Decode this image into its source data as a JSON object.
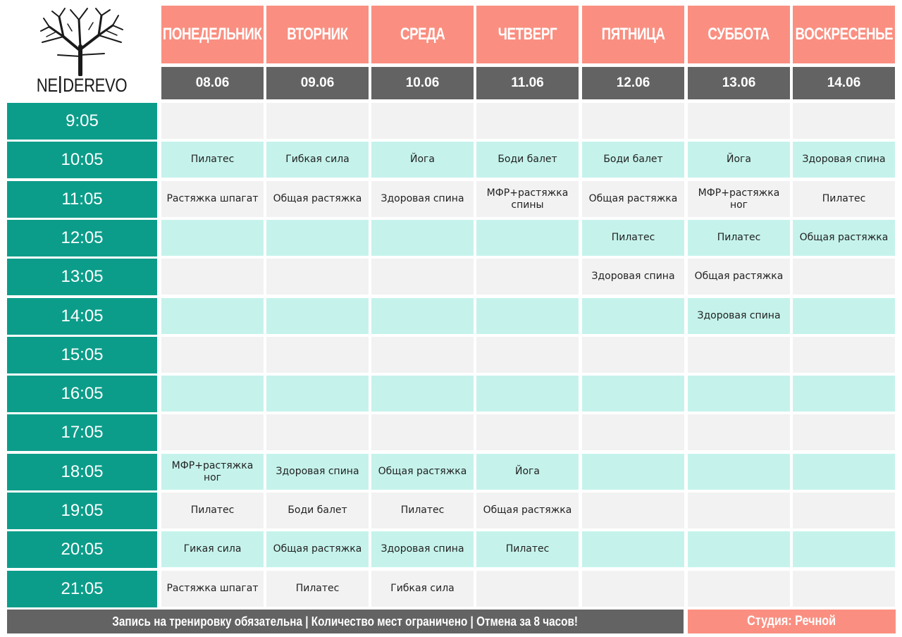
{
  "brand": {
    "name_left": "NE",
    "name_right": "DEREVO"
  },
  "days": [
    {
      "name": "ПОНЕДЕЛЬНИК",
      "date": "08.06"
    },
    {
      "name": "ВТОРНИК",
      "date": "09.06"
    },
    {
      "name": "СРЕДА",
      "date": "10.06"
    },
    {
      "name": "ЧЕТВЕРГ",
      "date": "11.06"
    },
    {
      "name": "ПЯТНИЦА",
      "date": "12.06"
    },
    {
      "name": "СУББОТА",
      "date": "13.06"
    },
    {
      "name": "ВОСКРЕСЕНЬЕ",
      "date": "14.06"
    }
  ],
  "times": [
    "9:05",
    "10:05",
    "11:05",
    "12:05",
    "13:05",
    "14:05",
    "15:05",
    "16:05",
    "17:05",
    "18:05",
    "19:05",
    "20:05",
    "21:05"
  ],
  "schedule": [
    [
      "",
      "",
      "",
      "",
      "",
      "",
      ""
    ],
    [
      "Пилатес",
      "Гибкая сила",
      "Йога",
      "Боди балет",
      "Боди балет",
      "Йога",
      "Здоровая спина"
    ],
    [
      "Растяжка шпагат",
      "Общая растяжка",
      "Здоровая спина",
      "МФР+растяжка спины",
      "Общая растяжка",
      "МФР+растяжка ног",
      "Пилатес"
    ],
    [
      "",
      "",
      "",
      "",
      "Пилатес",
      "Пилатес",
      "Общая растяжка"
    ],
    [
      "",
      "",
      "",
      "",
      "Здоровая спина",
      "Общая растяжка",
      ""
    ],
    [
      "",
      "",
      "",
      "",
      "",
      "Здоровая спина",
      ""
    ],
    [
      "",
      "",
      "",
      "",
      "",
      "",
      ""
    ],
    [
      "",
      "",
      "",
      "",
      "",
      "",
      ""
    ],
    [
      "",
      "",
      "",
      "",
      "",
      "",
      ""
    ],
    [
      "МФР+растяжка ног",
      "Здоровая спина",
      "Общая растяжка",
      "Йога",
      "",
      "",
      ""
    ],
    [
      "Пилатес",
      "Боди балет",
      "Пилатес",
      "Общая растяжка",
      "",
      "",
      ""
    ],
    [
      "Гикая сила",
      "Общая растяжка",
      "Здоровая спина",
      "Пилатес",
      "",
      "",
      ""
    ],
    [
      "Растяжка шпагат",
      "Пилатес",
      "Гибкая сила",
      "",
      "",
      "",
      ""
    ]
  ],
  "footer": {
    "notice": "Запись на тренировку обязательна  |  Количество мест ограничено  |  Отмена за 8 часов!",
    "studio": "Студия: Речной"
  },
  "colors": {
    "day_header": "#fa8f81",
    "date_header": "#636363",
    "time_column": "#0c9d8a",
    "row_light": "#f2f2f2",
    "row_mint": "#c5f3ec"
  }
}
